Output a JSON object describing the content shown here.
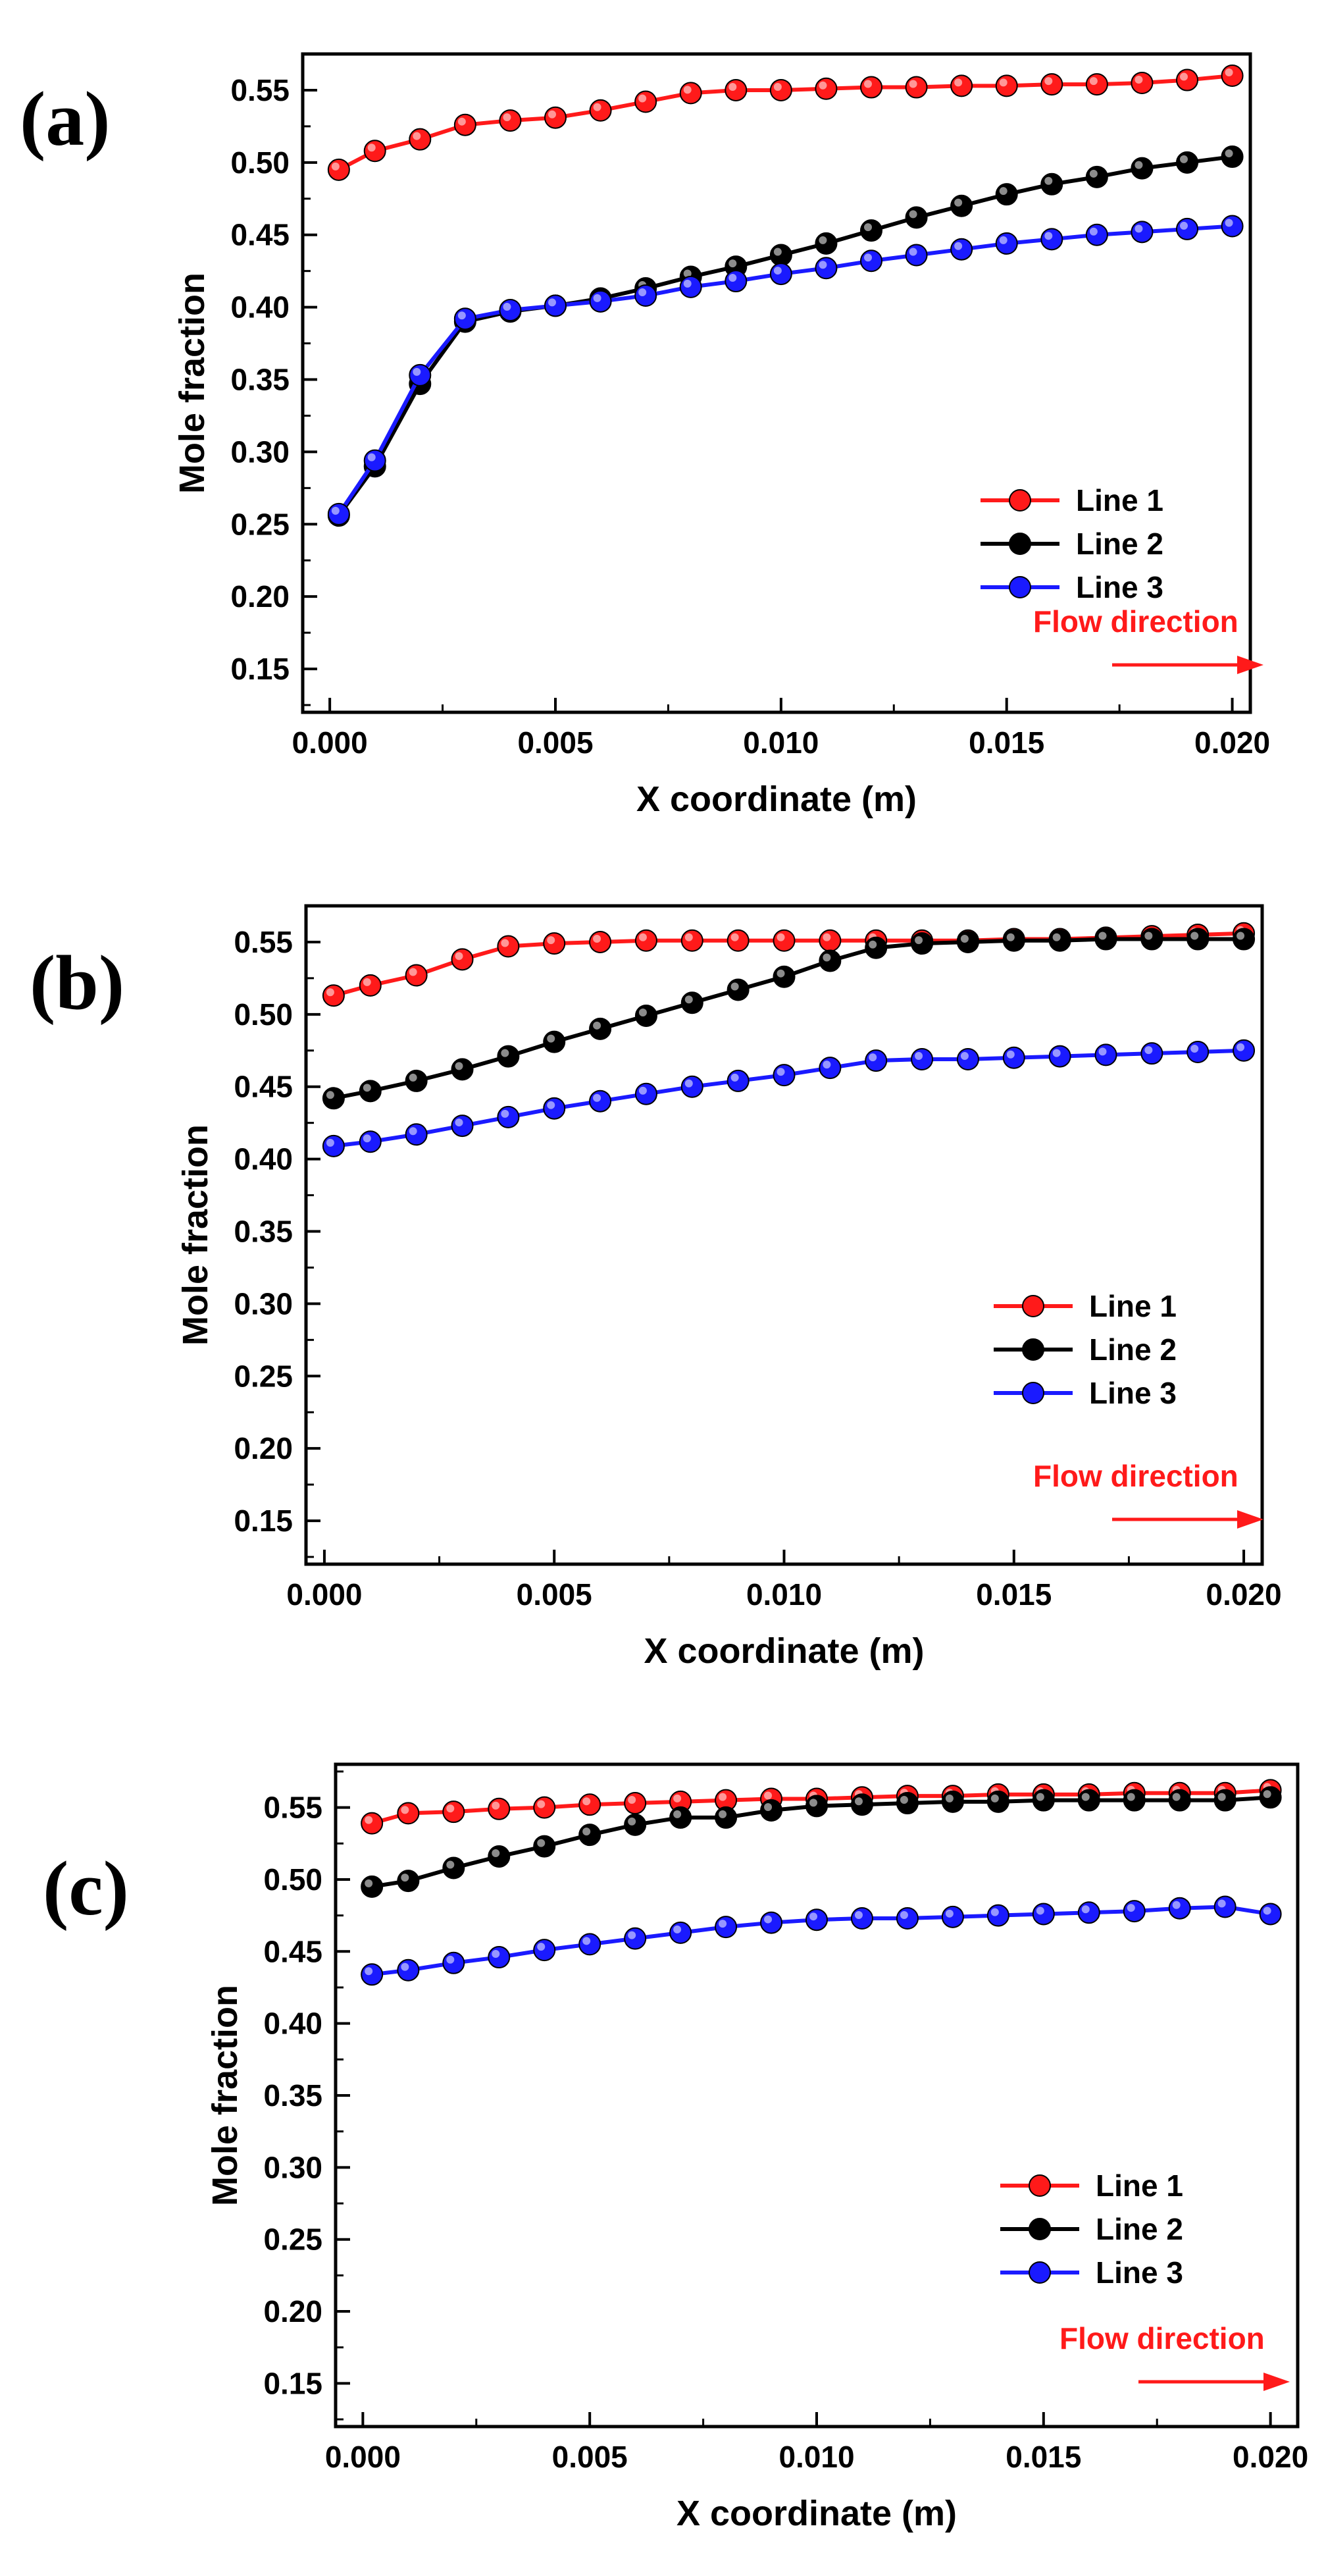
{
  "colors": {
    "line1": "#ff1a1a",
    "line2": "#000000",
    "line3": "#1a1aff",
    "flow": "#ff1a1a"
  },
  "chart_data": [
    {
      "type": "line",
      "panel_label": "(a)",
      "xlabel": "X coordinate (m)",
      "ylabel": "Mole fraction",
      "xlim": [
        -0.0006,
        0.0204
      ],
      "ylim": [
        0.12,
        0.575
      ],
      "xticks": [
        "0.000",
        "0.005",
        "0.010",
        "0.015",
        "0.020"
      ],
      "yticks": [
        "0.15",
        "0.20",
        "0.25",
        "0.30",
        "0.35",
        "0.40",
        "0.45",
        "0.50",
        "0.55"
      ],
      "annotation": "Flow direction",
      "x": [
        0.0002,
        0.001,
        0.002,
        0.003,
        0.004,
        0.005,
        0.006,
        0.007,
        0.008,
        0.009,
        0.01,
        0.011,
        0.012,
        0.013,
        0.014,
        0.015,
        0.016,
        0.017,
        0.018,
        0.019,
        0.02
      ],
      "series": [
        {
          "name": "Line 1",
          "values": [
            0.495,
            0.508,
            0.516,
            0.526,
            0.529,
            0.531,
            0.536,
            0.542,
            0.548,
            0.55,
            0.55,
            0.551,
            0.552,
            0.552,
            0.553,
            0.553,
            0.554,
            0.554,
            0.555,
            0.557,
            0.56
          ]
        },
        {
          "name": "Line 2",
          "values": [
            0.256,
            0.29,
            0.347,
            0.39,
            0.397,
            0.401,
            0.406,
            0.413,
            0.421,
            0.428,
            0.436,
            0.444,
            0.453,
            0.462,
            0.47,
            0.478,
            0.485,
            0.49,
            0.496,
            0.5,
            0.504
          ]
        },
        {
          "name": "Line 3",
          "values": [
            0.257,
            0.294,
            0.353,
            0.392,
            0.398,
            0.401,
            0.404,
            0.408,
            0.414,
            0.418,
            0.423,
            0.427,
            0.432,
            0.436,
            0.44,
            0.444,
            0.447,
            0.45,
            0.452,
            0.454,
            0.456
          ]
        }
      ]
    },
    {
      "type": "line",
      "panel_label": "(b)",
      "xlabel": "X coordinate (m)",
      "ylabel": "Mole fraction",
      "xlim": [
        -0.0004,
        0.0204
      ],
      "ylim": [
        0.12,
        0.575
      ],
      "xticks": [
        "0.000",
        "0.005",
        "0.010",
        "0.015",
        "0.020"
      ],
      "yticks": [
        "0.15",
        "0.20",
        "0.25",
        "0.30",
        "0.35",
        "0.40",
        "0.45",
        "0.50",
        "0.55"
      ],
      "annotation": "Flow direction",
      "x": [
        0.0002,
        0.001,
        0.002,
        0.003,
        0.004,
        0.005,
        0.006,
        0.007,
        0.008,
        0.009,
        0.01,
        0.011,
        0.012,
        0.013,
        0.014,
        0.015,
        0.016,
        0.017,
        0.018,
        0.019,
        0.02
      ],
      "series": [
        {
          "name": "Line 1",
          "values": [
            0.513,
            0.52,
            0.527,
            0.538,
            0.547,
            0.549,
            0.55,
            0.551,
            0.551,
            0.551,
            0.551,
            0.551,
            0.551,
            0.551,
            0.551,
            0.552,
            0.552,
            0.553,
            0.554,
            0.555,
            0.556
          ]
        },
        {
          "name": "Line 2",
          "values": [
            0.442,
            0.447,
            0.454,
            0.462,
            0.471,
            0.481,
            0.49,
            0.499,
            0.508,
            0.517,
            0.526,
            0.537,
            0.546,
            0.549,
            0.55,
            0.551,
            0.551,
            0.552,
            0.552,
            0.552,
            0.552
          ]
        },
        {
          "name": "Line 3",
          "values": [
            0.409,
            0.412,
            0.417,
            0.423,
            0.429,
            0.435,
            0.44,
            0.445,
            0.45,
            0.454,
            0.458,
            0.463,
            0.468,
            0.469,
            0.469,
            0.47,
            0.471,
            0.472,
            0.473,
            0.474,
            0.475
          ]
        }
      ]
    },
    {
      "type": "line",
      "panel_label": "(c)",
      "xlabel": "X coordinate (m)",
      "ylabel": "Mole fraction",
      "xlim": [
        -0.0006,
        0.0206
      ],
      "ylim": [
        0.12,
        0.58
      ],
      "xticks": [
        "0.000",
        "0.005",
        "0.010",
        "0.015",
        "0.020"
      ],
      "yticks": [
        "0.15",
        "0.20",
        "0.25",
        "0.30",
        "0.35",
        "0.40",
        "0.45",
        "0.50",
        "0.55"
      ],
      "annotation": "Flow direction",
      "x": [
        0.0002,
        0.001,
        0.002,
        0.003,
        0.004,
        0.005,
        0.006,
        0.007,
        0.008,
        0.009,
        0.01,
        0.011,
        0.012,
        0.013,
        0.014,
        0.015,
        0.016,
        0.017,
        0.018,
        0.019,
        0.02
      ],
      "series": [
        {
          "name": "Line 1",
          "values": [
            0.539,
            0.546,
            0.547,
            0.549,
            0.55,
            0.552,
            0.553,
            0.554,
            0.555,
            0.556,
            0.556,
            0.557,
            0.558,
            0.558,
            0.559,
            0.559,
            0.559,
            0.56,
            0.56,
            0.56,
            0.562
          ]
        },
        {
          "name": "Line 2",
          "values": [
            0.495,
            0.499,
            0.508,
            0.516,
            0.523,
            0.531,
            0.538,
            0.543,
            0.543,
            0.548,
            0.551,
            0.552,
            0.553,
            0.554,
            0.554,
            0.555,
            0.555,
            0.555,
            0.555,
            0.555,
            0.557
          ]
        },
        {
          "name": "Line 3",
          "values": [
            0.434,
            0.437,
            0.442,
            0.446,
            0.451,
            0.455,
            0.459,
            0.463,
            0.467,
            0.47,
            0.472,
            0.473,
            0.473,
            0.474,
            0.475,
            0.476,
            0.477,
            0.478,
            0.48,
            0.481,
            0.476
          ]
        }
      ]
    }
  ]
}
